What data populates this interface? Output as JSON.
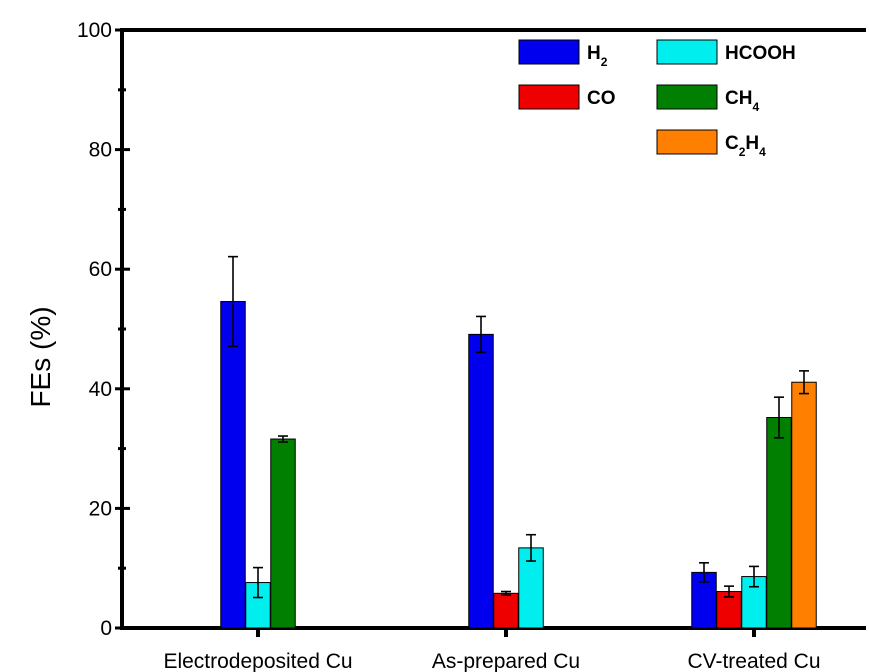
{
  "chart_data": {
    "type": "bar",
    "ylabel": "FEs (%)",
    "xlabel": "",
    "ylim": [
      0,
      100
    ],
    "yticks": [
      "0",
      "20",
      "40",
      "60",
      "80",
      "100"
    ],
    "categories": [
      "Electrodeposited Cu",
      "As-prepared Cu",
      "CV-treated Cu"
    ],
    "series": [
      {
        "name": "H₂",
        "color": "#0000ee",
        "values": [
          54.6,
          49.1,
          9.3
        ],
        "errors": [
          7.5,
          3.0,
          1.6
        ]
      },
      {
        "name": "CO",
        "color": "#ee0000",
        "values": [
          null,
          5.8,
          6.1
        ],
        "errors": [
          null,
          0.3,
          0.9
        ]
      },
      {
        "name": "HCOOH",
        "color": "#00eeee",
        "values": [
          7.6,
          13.4,
          8.6
        ],
        "errors": [
          2.5,
          2.2,
          1.7
        ]
      },
      {
        "name": "CH₄",
        "color": "#007f00",
        "values": [
          31.6,
          null,
          35.2
        ],
        "errors": [
          0.5,
          null,
          3.4
        ]
      },
      {
        "name": "C₂H₄",
        "color": "#ff8000",
        "values": [
          null,
          null,
          41.1
        ],
        "errors": [
          null,
          null,
          1.9
        ]
      }
    ],
    "legend": {
      "placement": "top-right",
      "entries": [
        {
          "base": "H",
          "sub": "2",
          "color": "#0000ee"
        },
        {
          "base": "HCOOH",
          "sub": "",
          "color": "#00eeee"
        },
        {
          "base": "CO",
          "sub": "",
          "color": "#ee0000"
        },
        {
          "base": "CH",
          "sub": "4",
          "color": "#007f00"
        },
        {
          "base": "C",
          "sub": "2",
          "tail": "H",
          "tail_sub": "4",
          "color": "#ff8000"
        }
      ]
    },
    "grid": false
  }
}
